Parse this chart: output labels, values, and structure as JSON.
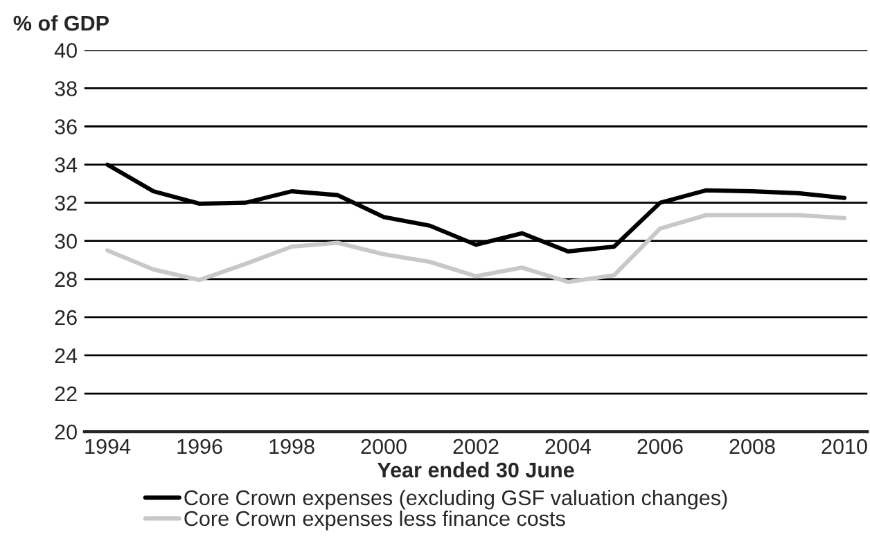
{
  "chart_data": {
    "type": "line",
    "xlabel": "Year ended 30 June",
    "ylabel": "% of GDP",
    "x": [
      1994,
      1995,
      1996,
      1997,
      1998,
      1999,
      2000,
      2001,
      2002,
      2003,
      2004,
      2005,
      2006,
      2007,
      2008,
      2009,
      2010
    ],
    "series": [
      {
        "name": "Core Crown expenses (excluding GSF valuation changes)",
        "color": "#000000",
        "values": [
          34.0,
          32.6,
          31.95,
          32.0,
          32.6,
          32.4,
          31.25,
          30.8,
          29.8,
          30.4,
          29.45,
          29.7,
          32.0,
          32.65,
          32.6,
          32.5,
          32.25
        ]
      },
      {
        "name": "Core Crown expenses less finance costs",
        "color": "#c8c8c8",
        "values": [
          29.5,
          28.5,
          27.95,
          28.8,
          29.7,
          29.9,
          29.3,
          28.9,
          28.15,
          28.6,
          27.85,
          28.2,
          30.65,
          31.35,
          31.35,
          31.35,
          31.2
        ]
      }
    ],
    "xlim": [
      1993.5,
      2010.5
    ],
    "xticks": [
      1994,
      1996,
      1998,
      2000,
      2002,
      2004,
      2006,
      2008,
      2010
    ],
    "ylim": [
      20,
      40
    ],
    "yticks": [
      20,
      22,
      24,
      26,
      28,
      30,
      32,
      34,
      36,
      38,
      40
    ],
    "grid": "y",
    "legend": "bottom",
    "marker": "none",
    "line_style": "solid"
  }
}
